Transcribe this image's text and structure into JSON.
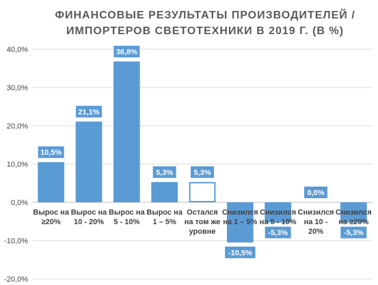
{
  "chart_data": {
    "type": "bar",
    "title": [
      "ФИНАНСОВЫЕ РЕЗУЛЬТАТЫ ПРОИЗВОДИТЕЛЕЙ /",
      "ИМПОРТЕРОВ СВЕТОТЕХНИКИ В 2019 Г. (В %)"
    ],
    "categories": [
      [
        "Вырос на",
        "≥20%"
      ],
      [
        "Вырос на",
        "10 - 20%"
      ],
      [
        "Вырос на",
        "5 - 10%"
      ],
      [
        "Вырос на",
        "1 – 5%"
      ],
      [
        "Остался",
        "на том же",
        "уровне"
      ],
      [
        "Снизился",
        "на 1 – 5%"
      ],
      [
        "Снизился",
        "на 5 - 10%"
      ],
      [
        "Снизился",
        "на 10 -",
        "20%"
      ],
      [
        "Снизился",
        "на ≥20%"
      ]
    ],
    "values": [
      10.5,
      21.1,
      36.8,
      5.3,
      5.3,
      -10.5,
      -5.3,
      0.0,
      -5.3
    ],
    "data_labels": [
      "10,5%",
      "21,1%",
      "36,8%",
      "5,3%",
      "5,3%",
      "-10,5%",
      "-5,3%",
      "0,0%",
      "-5,3%"
    ],
    "ylim": [
      -20,
      40
    ],
    "yticks": [
      40,
      30,
      20,
      10,
      0,
      -10,
      -20
    ],
    "ytick_labels": [
      "40,0%",
      "30,0%",
      "20,0%",
      "10,0%",
      "0,0%",
      "-10,0%",
      "-20,0%"
    ],
    "grid": true,
    "legend": "none",
    "colors": {
      "bar": "#5b9bd5",
      "highlight_fill": "#ffffff",
      "highlight_stroke": "#5b9bd5",
      "label_bg": "#5b9bd5",
      "label_text": "#ffffff"
    },
    "highlight_index": 4
  }
}
